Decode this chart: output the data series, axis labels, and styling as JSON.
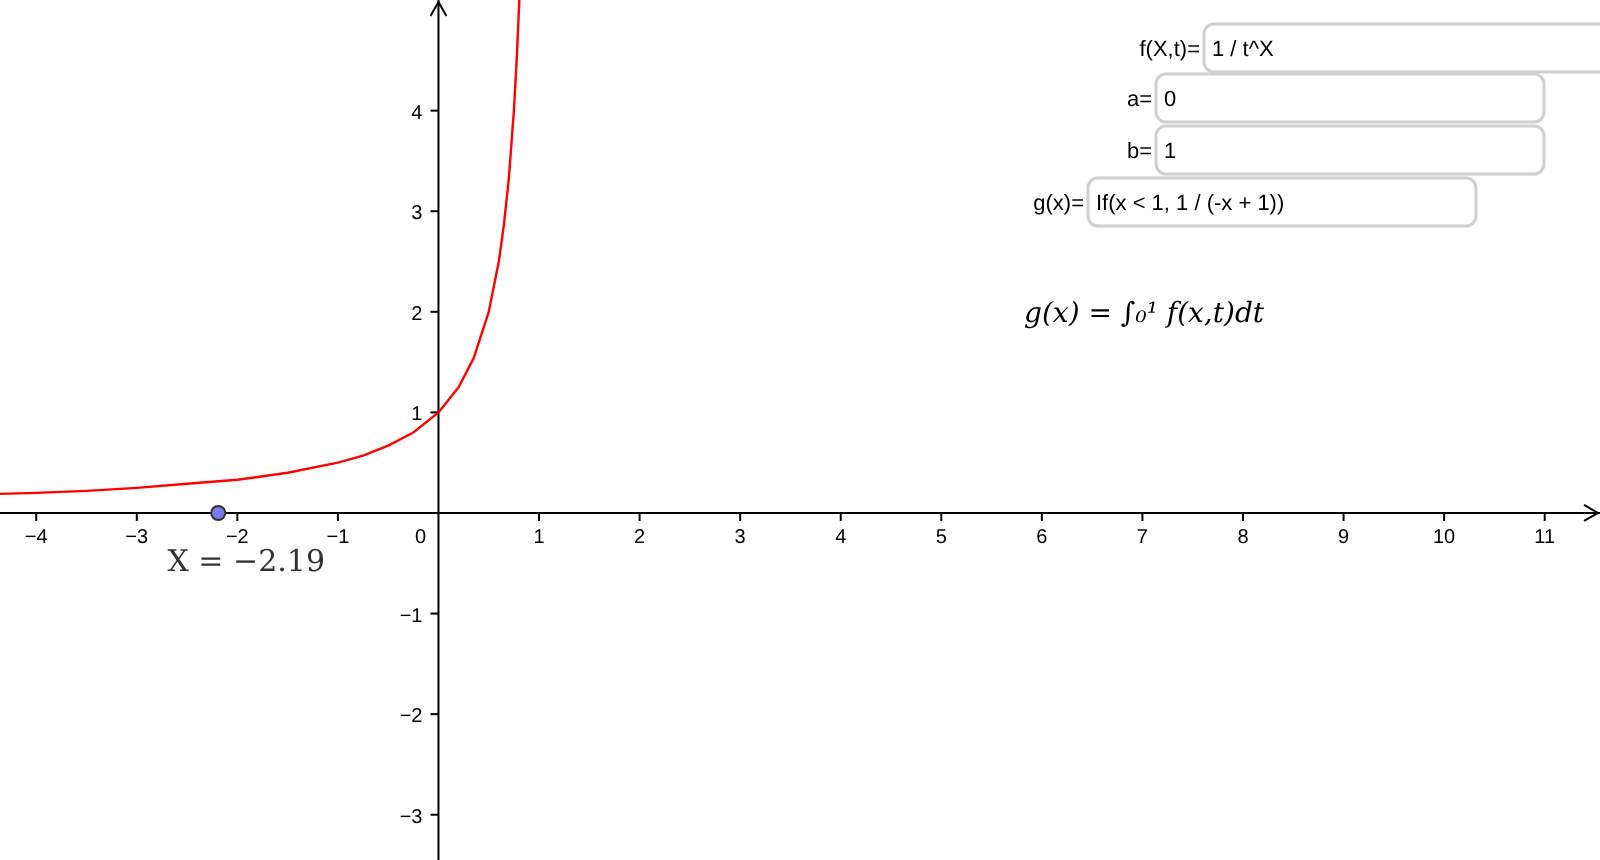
{
  "chart_data": {
    "type": "line",
    "xlim": [
      -4.36,
      11.55
    ],
    "ylim": [
      -3.45,
      5.1
    ],
    "xticks": [
      {
        "value": -4,
        "label": "−4"
      },
      {
        "value": -3,
        "label": "−3"
      },
      {
        "value": -2,
        "label": "−2"
      },
      {
        "value": -1,
        "label": "−1"
      },
      0,
      1,
      2,
      3,
      4,
      5,
      6,
      7,
      8,
      9,
      10,
      11
    ],
    "yticks": [
      {
        "value": -3,
        "label": "−3"
      },
      {
        "value": -2,
        "label": "−2"
      },
      {
        "value": -1,
        "label": "−1"
      },
      1,
      2,
      3,
      4
    ],
    "grid": false,
    "series": [
      {
        "color": "#ff0000",
        "x": [
          -4.36,
          -4,
          -3.5,
          -3,
          -2.5,
          -2,
          -1.5,
          -1,
          -0.75,
          -0.5,
          -0.25,
          0,
          0.2,
          0.35,
          0.5,
          0.6,
          0.65,
          0.7,
          0.75,
          0.78,
          0.804
        ],
        "values": [
          0.19,
          0.2,
          0.22,
          0.25,
          0.29,
          0.33,
          0.4,
          0.5,
          0.57,
          0.67,
          0.8,
          1,
          1.25,
          1.54,
          2,
          2.5,
          2.86,
          3.33,
          4,
          4.55,
          5.1
        ],
        "line_style": "solid",
        "marker": "none"
      },
      {
        "type": "scatter",
        "color": "#7b7bf0",
        "x": [
          -2.19
        ],
        "values": [
          0
        ],
        "marker": "circle"
      }
    ],
    "annotations": [
      {
        "text": "X = −2.19",
        "x": -2.19,
        "y": 0
      },
      "f(X,t)=",
      "1 / t^X",
      "a=",
      "0",
      "b=",
      "1",
      "g(x)=",
      "If(x < 1, 1 / (-x + 1))",
      "g(x) = ∫₀¹ f(x,t)dt"
    ]
  }
}
